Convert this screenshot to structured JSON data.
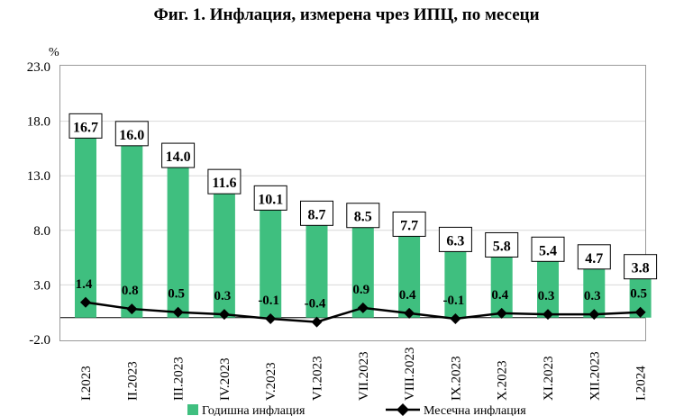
{
  "title": "Фиг. 1. Инфлация, измерена чрез ИПЦ, по месеци",
  "colors": {
    "bar": "#3fbf7f",
    "line": "#000000",
    "grid": "#d8d8d8",
    "label_border": "#000000"
  },
  "chart_data": {
    "type": "bar",
    "title": "Фиг. 1. Инфлация, измерена чрез ИПЦ, по месеци",
    "unit_label": "%",
    "ylim": [
      -2.0,
      23.0
    ],
    "yticks": [
      "23.0",
      "18.0",
      "13.0",
      "8.0",
      "3.0",
      "-2.0"
    ],
    "grid": true,
    "legend_position": "bottom",
    "categories": [
      "I.2023",
      "II.2023",
      "III.2023",
      "IV.2023",
      "V.2023",
      "VI.2023",
      "VII.2023",
      "VIII.2023",
      "IX.2023",
      "X.2023",
      "XI.2023",
      "XII.2023",
      "I.2024"
    ],
    "category_display": [
      "I.2023",
      "II.2023",
      "III.2023",
      "IV.2023",
      "V.2023",
      "VI.2023",
      "VII.2023",
      "VIII.2023",
      "IX.2023",
      "X.2023",
      "XI.2023",
      "XII.2023",
      "I.2024"
    ],
    "series": [
      {
        "name": "Годишна инфлация",
        "type": "bar",
        "values": [
          16.7,
          16.0,
          14.0,
          11.6,
          10.1,
          8.7,
          8.5,
          7.7,
          6.3,
          5.8,
          5.4,
          4.7,
          3.8
        ],
        "labels": [
          "16.7",
          "16.0",
          "14.0",
          "11.6",
          "10.1",
          "8.7",
          "8.5",
          "7.7",
          "6.3",
          "5.8",
          "5.4",
          "4.7",
          "3.8"
        ]
      },
      {
        "name": "Месечна инфлация",
        "type": "line",
        "values": [
          1.4,
          0.8,
          0.5,
          0.3,
          -0.1,
          -0.4,
          0.9,
          0.4,
          -0.1,
          0.4,
          0.3,
          0.3,
          0.5
        ],
        "labels": [
          "1.4",
          "0.8",
          "0.5",
          "0.3",
          "-0.1",
          "-0.4",
          "0.9",
          "0.4",
          "-0.1",
          "0.4",
          "0.3",
          "0.3",
          "0.5"
        ]
      }
    ]
  }
}
